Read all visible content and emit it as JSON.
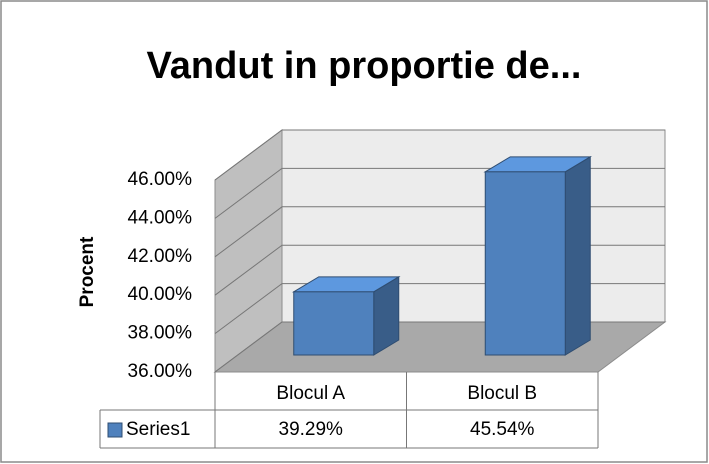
{
  "chart_data": {
    "type": "bar3d",
    "title": "Vandut in proportie de...",
    "y_label": "Procent",
    "categories": [
      "Blocul A",
      "Blocul B"
    ],
    "series": [
      {
        "name": "Series1",
        "color": "#4f81bd",
        "values": [
          39.29,
          45.54
        ],
        "value_labels": [
          "39.29%",
          "45.54%"
        ]
      }
    ],
    "ylim": [
      36,
      46
    ],
    "yticks": [
      {
        "value": 36,
        "label": "36.00%"
      },
      {
        "value": 38,
        "label": "38.00%"
      },
      {
        "value": 40,
        "label": "40.00%"
      },
      {
        "value": 42,
        "label": "42.00%"
      },
      {
        "value": 44,
        "label": "44.00%"
      },
      {
        "value": 46,
        "label": "46.00%"
      }
    ],
    "grid": true,
    "data_table": true
  }
}
